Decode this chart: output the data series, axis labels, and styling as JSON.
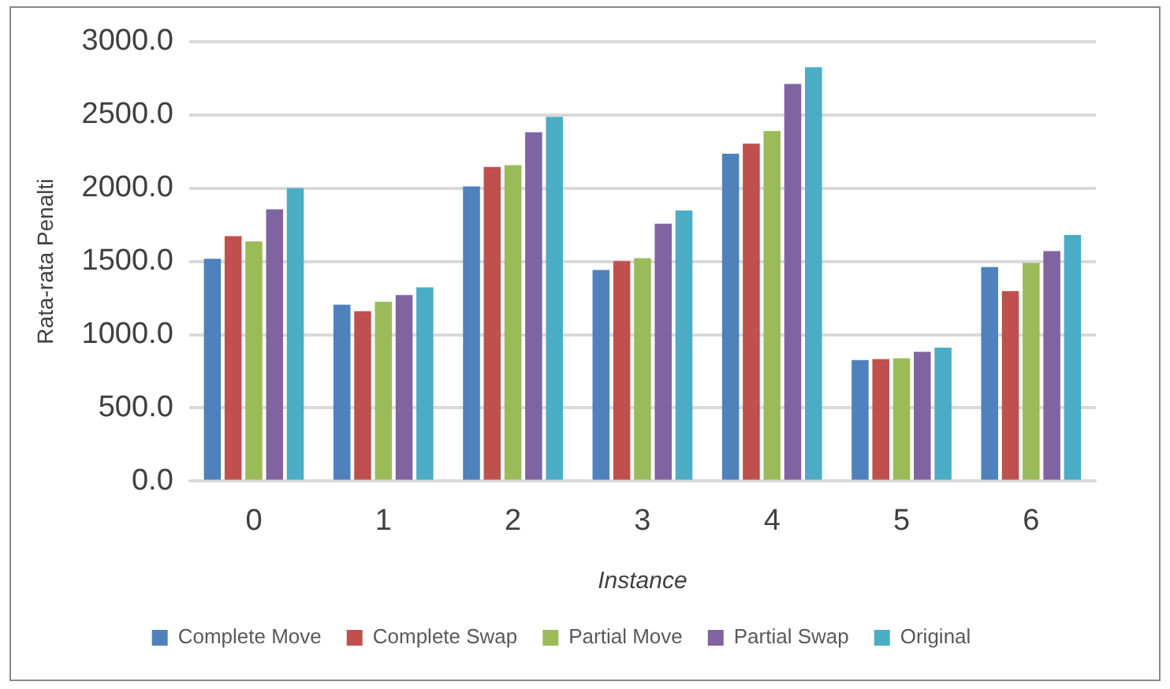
{
  "chart_data": {
    "type": "bar",
    "xlabel": "Instance",
    "ylabel": "Rata-rata Penalti",
    "categories": [
      "0",
      "1",
      "2",
      "3",
      "4",
      "5",
      "6"
    ],
    "series": [
      {
        "name": "Complete Move",
        "color": "#4f81bd",
        "values": [
          1518,
          1205,
          2011,
          1441,
          2235,
          826,
          1461
        ]
      },
      {
        "name": "Complete Swap",
        "color": "#c0504d",
        "values": [
          1673,
          1160,
          2145,
          1502,
          2304,
          834,
          1298
        ]
      },
      {
        "name": "Partial Move",
        "color": "#9bbb59",
        "values": [
          1636,
          1225,
          2157,
          1522,
          2389,
          839,
          1490
        ]
      },
      {
        "name": "Partial Swap",
        "color": "#8064a2",
        "values": [
          1856,
          1270,
          2381,
          1758,
          2711,
          883,
          1571
        ]
      },
      {
        "name": "Original",
        "color": "#4bacc6",
        "values": [
          1999,
          1323,
          2487,
          1848,
          2825,
          912,
          1681
        ]
      }
    ],
    "ylim": [
      0,
      3000
    ],
    "yticks": [
      {
        "value": 0,
        "label": "0.0"
      },
      {
        "value": 500,
        "label": "500.0"
      },
      {
        "value": 1000,
        "label": "1000.0"
      },
      {
        "value": 1500,
        "label": "1500.0"
      },
      {
        "value": 2000,
        "label": "2000.0"
      },
      {
        "value": 2500,
        "label": "2500.0"
      },
      {
        "value": 3000,
        "label": "3000.0"
      }
    ],
    "grid": "y",
    "legend": "bottom"
  }
}
